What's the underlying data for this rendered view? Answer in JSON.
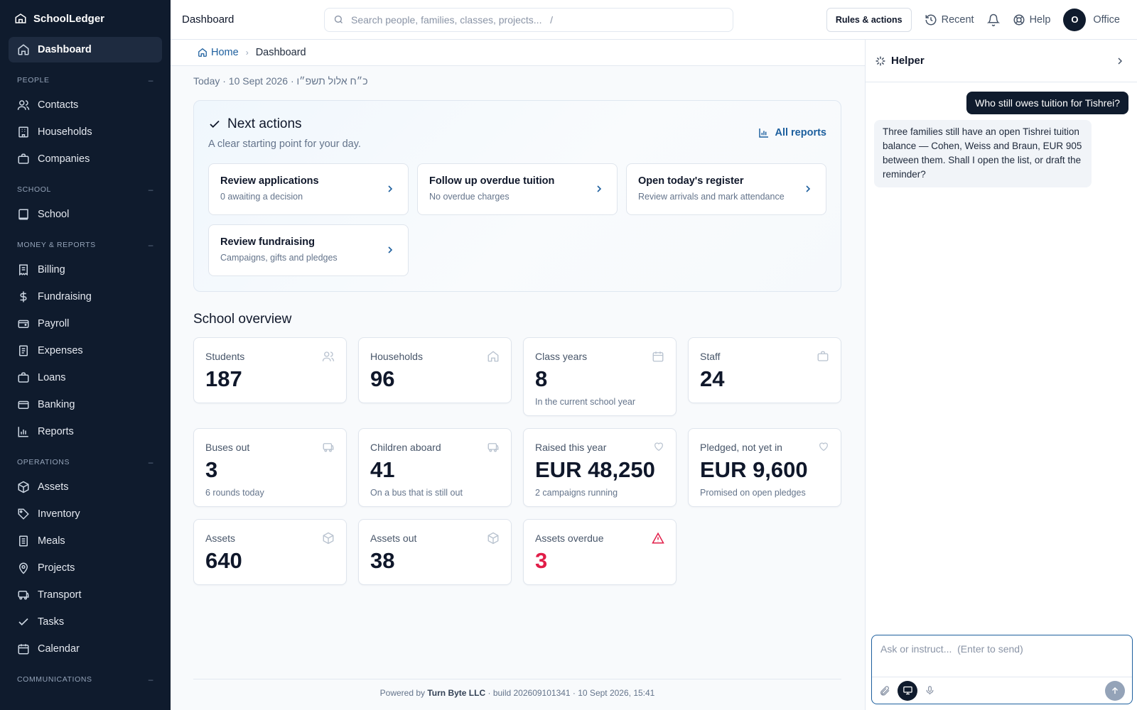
{
  "app": {
    "name": "SchoolLedger"
  },
  "sidebar": {
    "dashboard": "Dashboard",
    "sections": {
      "people": "PEOPLE",
      "school": "SCHOOL",
      "money": "MONEY & REPORTS",
      "operations": "OPERATIONS",
      "communications": "COMMUNICATIONS"
    },
    "collapse": "–",
    "people": [
      "Contacts",
      "Households",
      "Companies"
    ],
    "school": [
      "School"
    ],
    "money": [
      "Billing",
      "Fundraising",
      "Payroll",
      "Expenses",
      "Loans",
      "Banking",
      "Reports"
    ],
    "operations": [
      "Assets",
      "Inventory",
      "Meals",
      "Projects",
      "Transport",
      "Tasks",
      "Calendar"
    ]
  },
  "topbar": {
    "title": "Dashboard",
    "search_placeholder": "Search people, families, classes, projects...   /",
    "rules_button": "Rules & actions",
    "recent": "Recent",
    "help": "Help",
    "avatar_initial": "O",
    "user_name": "Office"
  },
  "breadcrumb": {
    "home": "Home",
    "current": "Dashboard"
  },
  "main": {
    "date_line": "Today · 10 Sept 2026 · כ״ח אלול תשפ״ו",
    "next_actions": {
      "title": "Next actions",
      "subtitle": "A clear starting point for your day.",
      "all_reports": "All reports",
      "items": [
        {
          "title": "Review applications",
          "sub": "0 awaiting a decision"
        },
        {
          "title": "Follow up overdue tuition",
          "sub": "No overdue charges"
        },
        {
          "title": "Open today's register",
          "sub": "Review arrivals and mark attendance"
        },
        {
          "title": "Review fundraising",
          "sub": "Campaigns, gifts and pledges"
        }
      ]
    },
    "overview_title": "School overview",
    "stats": [
      {
        "label": "Students",
        "value": "187",
        "icon": "users-icon"
      },
      {
        "label": "Households",
        "value": "96",
        "icon": "home-icon"
      },
      {
        "label": "Class years",
        "value": "8",
        "sub": "In the current school year",
        "icon": "calendar-icon"
      },
      {
        "label": "Staff",
        "value": "24",
        "icon": "briefcase-icon"
      },
      {
        "label": "Buses out",
        "value": "3",
        "sub": "6 rounds today",
        "icon": "bus-icon"
      },
      {
        "label": "Children aboard",
        "value": "41",
        "sub": "On a bus that is still out",
        "icon": "bus-icon"
      },
      {
        "label": "Raised this year",
        "value": "EUR 48,250",
        "sub": "2 campaigns running",
        "icon": "heart-icon"
      },
      {
        "label": "Pledged, not yet in",
        "value": "EUR 9,600",
        "sub": "Promised on open pledges",
        "icon": "heart-icon"
      },
      {
        "label": "Assets",
        "value": "640",
        "icon": "box-icon"
      },
      {
        "label": "Assets out",
        "value": "38",
        "icon": "box-icon"
      },
      {
        "label": "Assets overdue",
        "value": "3",
        "icon": "warning-icon",
        "status_color": "#e11d48"
      }
    ],
    "footer": {
      "prefix": "Powered by",
      "company": "Turn Byte LLC",
      "suffix": "· build 202609101341 · 10 Sept 2026, 15:41"
    }
  },
  "helper": {
    "title": "Helper",
    "user_message": "Who still owes tuition for Tishrei?",
    "bot_message": "Three families still have an open Tishrei tuition balance — Cohen, Weiss and Braun, EUR 905 between them. Shall I open the list, or draft the reminder?",
    "input_placeholder": "Ask or instruct...  (Enter to send)"
  },
  "colors": {
    "sidebar_bg": "#0f1b2d",
    "accent": "#1d5f9e",
    "danger": "#e11d48"
  }
}
